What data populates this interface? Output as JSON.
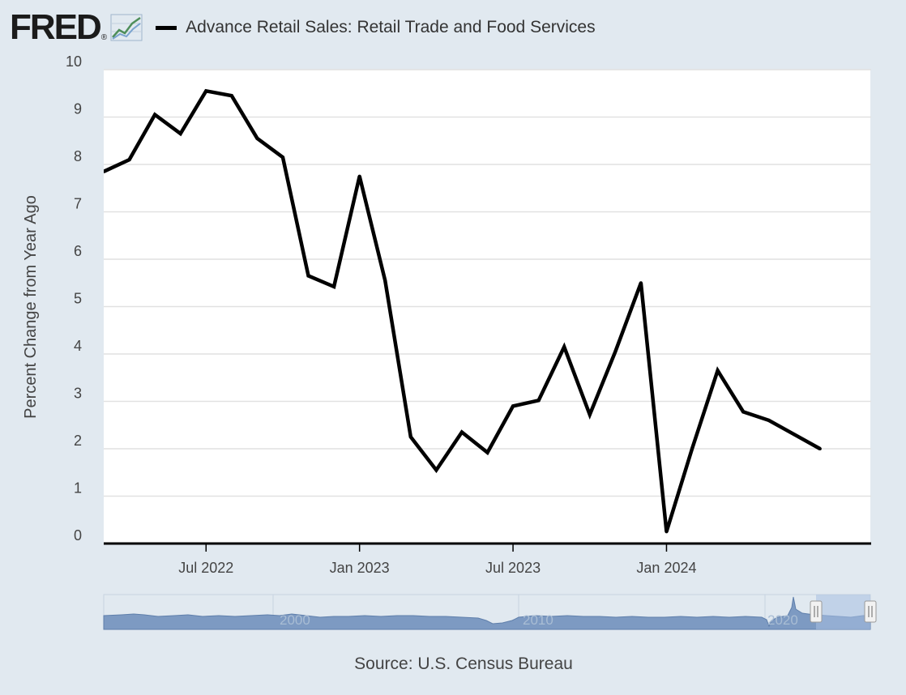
{
  "header": {
    "logo_text": "FRED",
    "logo_mark": "®",
    "legend_label": "Advance Retail Sales: Retail Trade and Food Services",
    "logo_icon": "line-graph-icon"
  },
  "footer": {
    "source": "Source: U.S. Census Bureau"
  },
  "colors": {
    "background": "#e1e9f0",
    "plot": "#ffffff",
    "series": "#000000",
    "navigator_fill": "#7d9ac2",
    "navigator_window": "#a7bfe1"
  },
  "chart_data": {
    "type": "line",
    "ylabel": "Percent Change from Year Ago",
    "xlabel": "",
    "ylim": [
      0,
      10
    ],
    "yticks": [
      "0",
      "1",
      "2",
      "3",
      "4",
      "5",
      "6",
      "7",
      "8",
      "9",
      "10"
    ],
    "xtick_labels": [
      "Jul 2022",
      "Jan 2023",
      "Jul 2023",
      "Jan 2024"
    ],
    "xtick_dates": [
      "2022-07",
      "2023-01",
      "2023-07",
      "2024-01"
    ],
    "x_range": [
      "2022-03",
      "2024-09"
    ],
    "grid": true,
    "series": [
      {
        "x": [
          "2022-03",
          "2022-04",
          "2022-05",
          "2022-06",
          "2022-07",
          "2022-08",
          "2022-09",
          "2022-10",
          "2022-11",
          "2022-12",
          "2023-01",
          "2023-02",
          "2023-03",
          "2023-04",
          "2023-05",
          "2023-06",
          "2023-07",
          "2023-08",
          "2023-09",
          "2023-10",
          "2023-11",
          "2023-12",
          "2024-01",
          "2024-02",
          "2024-03",
          "2024-04",
          "2024-05",
          "2024-06",
          "2024-07"
        ],
        "values": [
          7.85,
          8.1,
          9.05,
          8.65,
          9.55,
          9.45,
          8.55,
          8.15,
          5.65,
          5.42,
          7.75,
          5.55,
          2.25,
          1.55,
          2.35,
          1.92,
          2.9,
          3.02,
          4.15,
          2.72,
          4.05,
          5.5,
          0.25,
          2.0,
          3.65,
          2.78,
          2.6,
          2.3,
          2.0
        ]
      }
    ],
    "navigator": {
      "labels": [
        "2000",
        "2010",
        "2020"
      ]
    }
  }
}
